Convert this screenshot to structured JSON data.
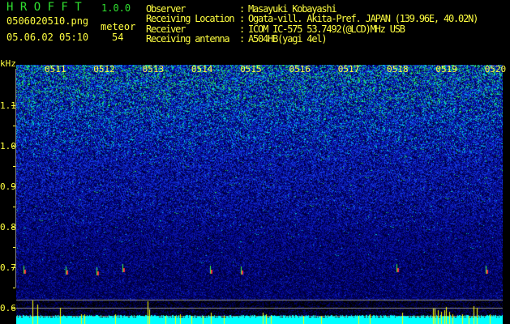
{
  "app": {
    "title": "H R O F F T",
    "version": "1.0.0"
  },
  "file": {
    "name": "0506020510.png",
    "datetime": "05.06.02 05:10"
  },
  "meteor": {
    "label": "meteor",
    "count": "54"
  },
  "info": [
    {
      "key": "Observer",
      "value": "Masayuki Kobayashi"
    },
    {
      "key": "Receiving Location",
      "value": "Ogata-vill. Akita-Pref. JAPAN (139.96E, 40.02N)"
    },
    {
      "key": "Receiver",
      "value": "ICOM IC-575 53.7492(@LCD)MHz USB"
    },
    {
      "key": "Receiving antenna",
      "value": "A504HB(yagi 4el)"
    }
  ],
  "axis": {
    "unit": "kHz",
    "y_ticks": [
      "1.1",
      "1.0",
      "0.9",
      "0.8",
      "0.7",
      "0.6"
    ],
    "time_labels": [
      "0511",
      "0512",
      "0513",
      "0514",
      "0515",
      "0516",
      "0517",
      "0518",
      "0519",
      "0520"
    ]
  },
  "colors": {
    "text": "#ffff40",
    "title": "#30e030",
    "echo_bar": "#ffff00",
    "noise_floor": "#00ffff"
  }
}
